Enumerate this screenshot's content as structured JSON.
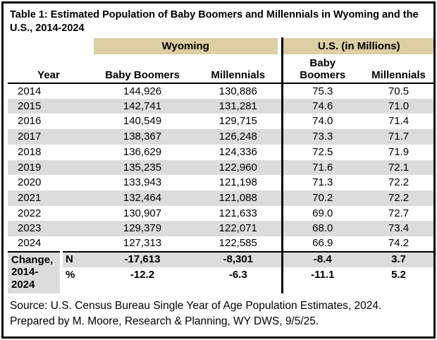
{
  "table": {
    "title": "Table 1: Estimated Population of Baby Boomers and Millennials in Wyoming and the U.S., 2014-2024",
    "groups": {
      "wyoming": "Wyoming",
      "us": "U.S. (in Millions)"
    },
    "columns": {
      "year": "Year",
      "wy_boomers": "Baby Boomers",
      "wy_millennials": "Millennials",
      "us_boomers": "Baby Boomers",
      "us_millennials": "Millennials"
    },
    "rows": [
      {
        "year": "2014",
        "wy_bb": "144,926",
        "wy_mill": "130,886",
        "us_bb": "75.3",
        "us_mill": "70.5"
      },
      {
        "year": "2015",
        "wy_bb": "142,741",
        "wy_mill": "131,281",
        "us_bb": "74.6",
        "us_mill": "71.0"
      },
      {
        "year": "2016",
        "wy_bb": "140,549",
        "wy_mill": "129,715",
        "us_bb": "74.0",
        "us_mill": "71.4"
      },
      {
        "year": "2017",
        "wy_bb": "138,367",
        "wy_mill": "126,248",
        "us_bb": "73.3",
        "us_mill": "71.7"
      },
      {
        "year": "2018",
        "wy_bb": "136,629",
        "wy_mill": "124,336",
        "us_bb": "72.5",
        "us_mill": "71.9"
      },
      {
        "year": "2019",
        "wy_bb": "135,235",
        "wy_mill": "122,960",
        "us_bb": "71.6",
        "us_mill": "72.1"
      },
      {
        "year": "2020",
        "wy_bb": "133,943",
        "wy_mill": "121,198",
        "us_bb": "71.3",
        "us_mill": "72.2"
      },
      {
        "year": "2021",
        "wy_bb": "132,464",
        "wy_mill": "121,088",
        "us_bb": "70.2",
        "us_mill": "72.2"
      },
      {
        "year": "2022",
        "wy_bb": "130,907",
        "wy_mill": "121,633",
        "us_bb": "69.0",
        "us_mill": "72.7"
      },
      {
        "year": "2023",
        "wy_bb": "129,379",
        "wy_mill": "122,071",
        "us_bb": "68.0",
        "us_mill": "73.4"
      },
      {
        "year": "2024",
        "wy_bb": "127,313",
        "wy_mill": "122,585",
        "us_bb": "66.9",
        "us_mill": "74.2"
      }
    ],
    "change": {
      "label": "Change, 2014-2024",
      "n": {
        "label": "N",
        "wy_bb": "-17,613",
        "wy_mill": "-8,301",
        "us_bb": "-8.4",
        "us_mill": "3.7"
      },
      "pct": {
        "label": "%",
        "wy_bb": "-12.2",
        "wy_mill": "-6.3",
        "us_bb": "-11.1",
        "us_mill": "5.2"
      }
    },
    "source_line1": "Source: U.S. Census Bureau Single Year of Age Population Estimates, 2024.",
    "source_line2": "Prepared by M. Moore, Research & Planning, WY DWS, 9/5/25.",
    "colors": {
      "band_tan": "#dbcfa3",
      "stripe_gray": "#dcdcdc",
      "border_black": "#000000"
    }
  }
}
